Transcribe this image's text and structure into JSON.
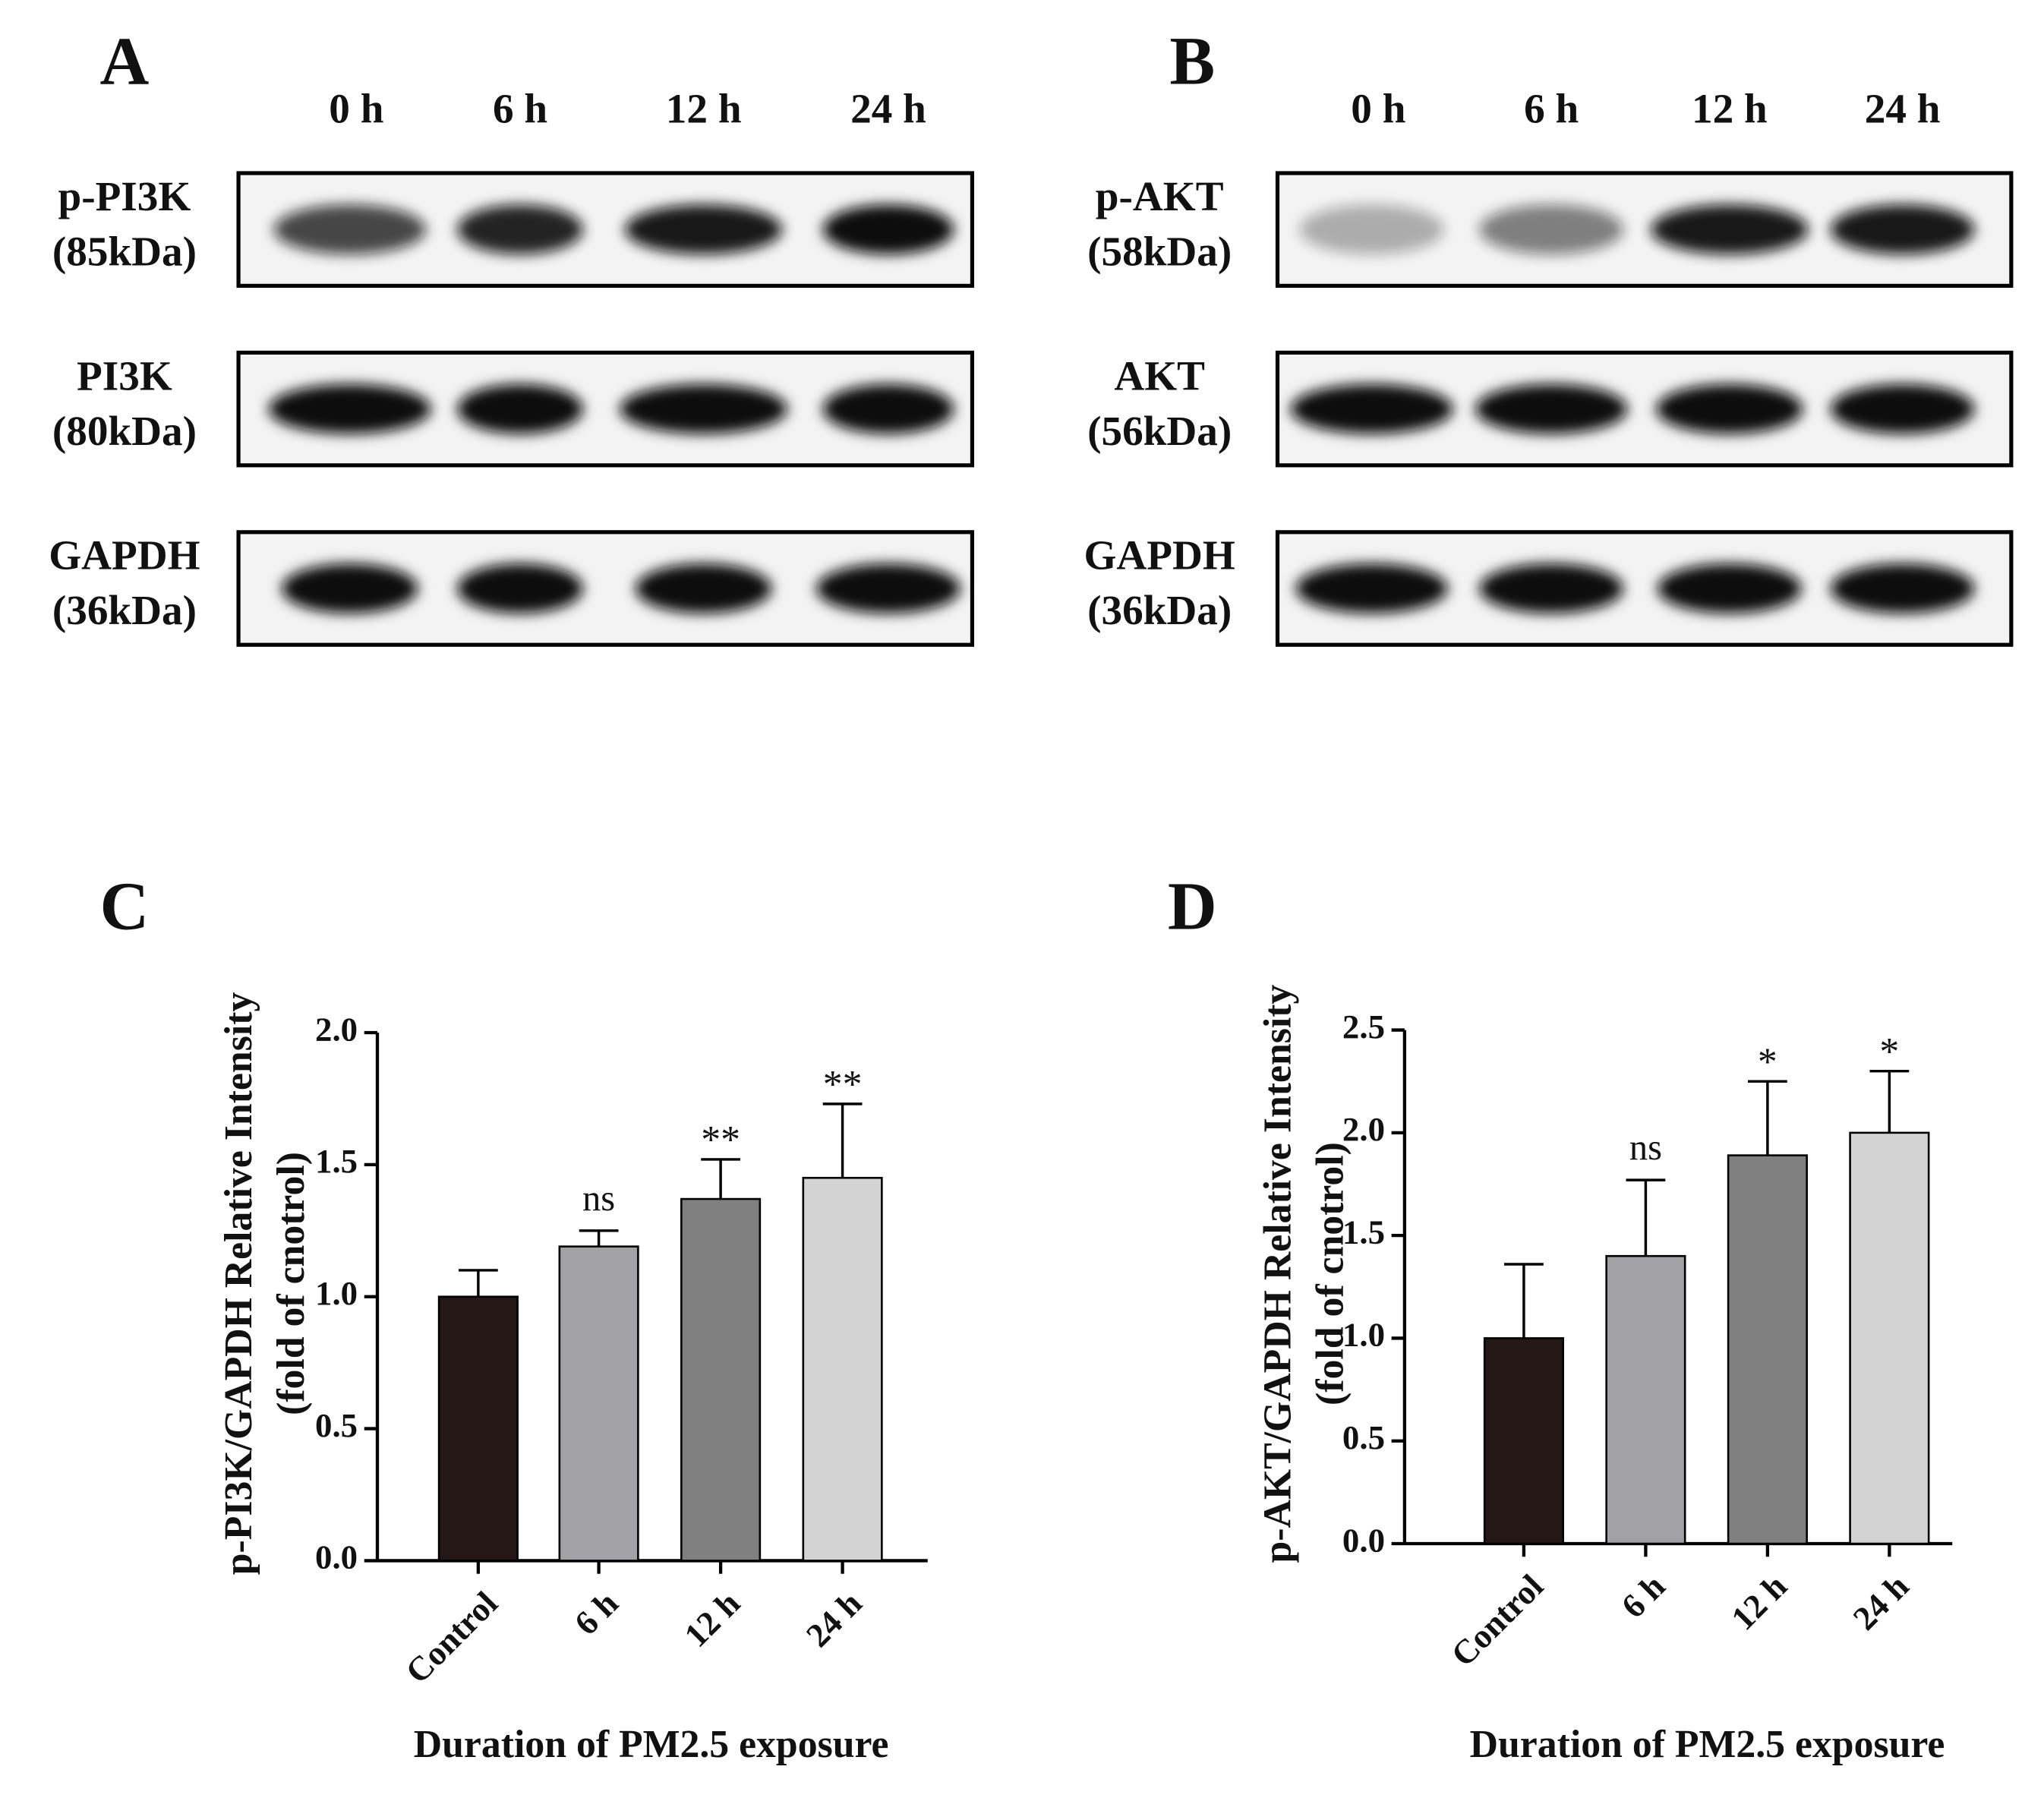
{
  "blots": [
    {
      "panel": "A",
      "lanes": [
        "0 h",
        "6 h",
        "12 h",
        "24 h"
      ],
      "rows": [
        {
          "name": "p-PI3K",
          "size": "(85kDa)"
        },
        {
          "name": "PI3K",
          "size": "(80kDa)"
        },
        {
          "name": "GAPDH",
          "size": "(36kDa)"
        }
      ]
    },
    {
      "panel": "B",
      "lanes": [
        "0 h",
        "6 h",
        "12 h",
        "24 h"
      ],
      "rows": [
        {
          "name": "p-AKT",
          "size": "(58kDa)"
        },
        {
          "name": "AKT",
          "size": "(56kDa)"
        },
        {
          "name": "GAPDH",
          "size": "(36kDa)"
        }
      ]
    }
  ],
  "chart_data": [
    {
      "type": "bar",
      "panel": "C",
      "y_label": [
        "p-PI3K/GAPDH Relative Intensity",
        "(fold of cnotrol)"
      ],
      "x_label": "Duration of PM2.5 exposure",
      "categories": [
        "Control",
        "6 h",
        "12 h",
        "24 h"
      ],
      "values": [
        1.0,
        1.19,
        1.37,
        1.45
      ],
      "errors": [
        0.1,
        0.06,
        0.15,
        0.28
      ],
      "annotations": [
        null,
        "ns",
        "**",
        "**"
      ],
      "colors": [
        "#231815",
        "#a2a1a6",
        "#808080",
        "#d3d3d3"
      ],
      "ylim": [
        0,
        2
      ],
      "yticks": [
        {
          "value": 0,
          "label": "0.0"
        },
        0.5,
        {
          "value": 1,
          "label": "1.0"
        },
        1.5,
        {
          "value": 2,
          "label": "2.0"
        }
      ]
    },
    {
      "type": "bar",
      "panel": "D",
      "y_label": [
        "p-AKT/GAPDH Relative Intensity",
        "(fold of cnotrol)"
      ],
      "x_label": "Duration of PM2.5 exposure",
      "categories": [
        "Control",
        "6 h",
        "12 h",
        "24 h"
      ],
      "values": [
        1.0,
        1.4,
        1.89,
        2.0
      ],
      "errors": [
        0.36,
        0.37,
        0.36,
        0.3
      ],
      "annotations": [
        null,
        "ns",
        "*",
        "*"
      ],
      "colors": [
        "#231815",
        "#a2a1a6",
        "#808080",
        "#d3d3d3"
      ],
      "ylim": [
        0,
        2.5
      ],
      "yticks": [
        {
          "value": 0,
          "label": "0.0"
        },
        0.5,
        {
          "value": 1,
          "label": "1.0"
        },
        1.5,
        {
          "value": 2,
          "label": "2.0"
        },
        2.5
      ]
    }
  ]
}
